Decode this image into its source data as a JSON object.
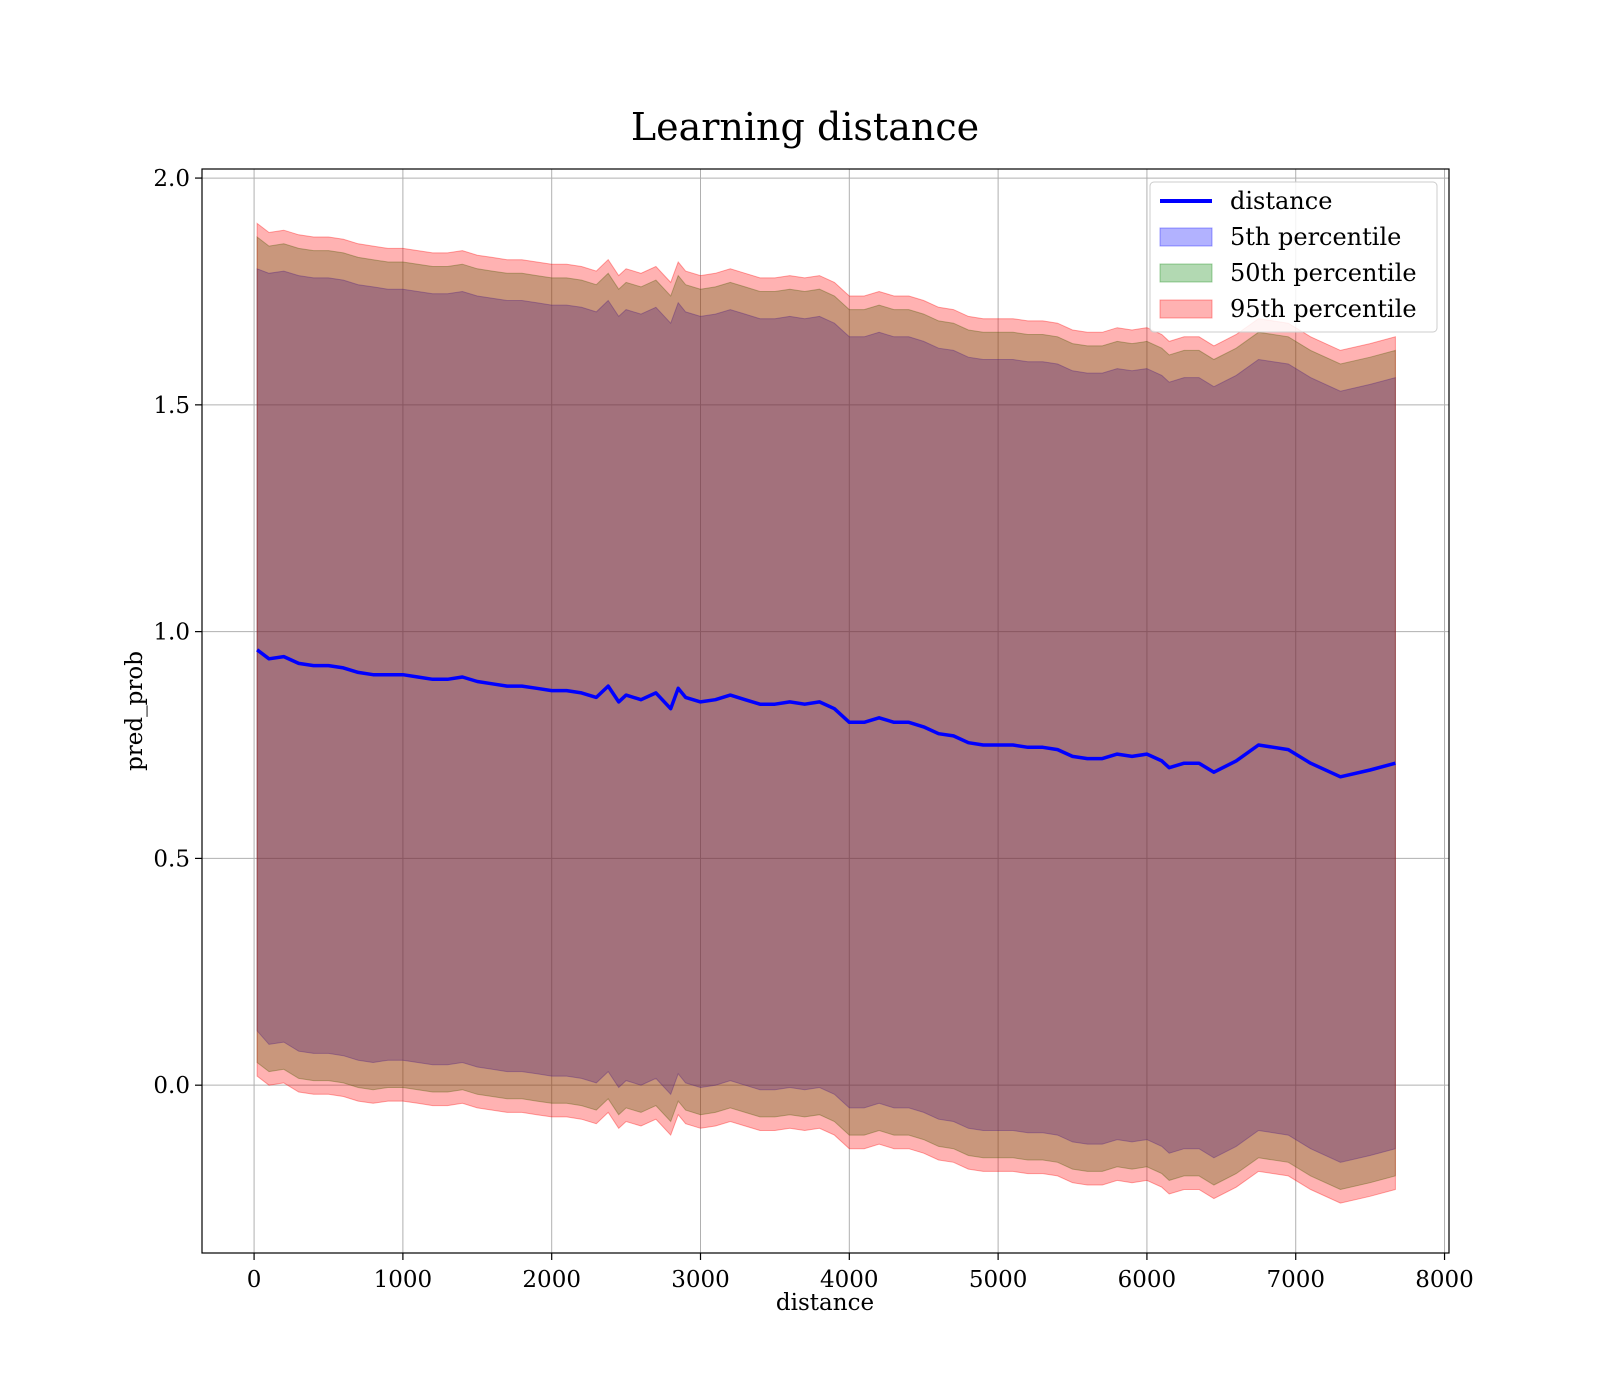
{
  "chart_data": {
    "type": "line",
    "title": "Learning distance",
    "xlabel": "distance",
    "ylabel": "pred_prob",
    "xlim": [
      -350,
      8030
    ],
    "ylim": [
      -0.37,
      2.02
    ],
    "xticks": [
      0,
      1000,
      2000,
      3000,
      4000,
      5000,
      6000,
      7000,
      8000
    ],
    "yticks": [
      0.0,
      0.5,
      1.0,
      1.5,
      2.0
    ],
    "xtick_labels": [
      "0",
      "1000",
      "2000",
      "3000",
      "4000",
      "5000",
      "6000",
      "7000",
      "8000"
    ],
    "ytick_labels": [
      "0.0",
      "0.5",
      "1.0",
      "1.5",
      "2.0"
    ],
    "grid": true,
    "legend_position": "top-right",
    "colors": {
      "line": "#0000ff",
      "band_5": "#0000ff",
      "band_50": "#008000",
      "band_95": "#ff0000"
    },
    "line_series": {
      "name": "distance",
      "x": [
        20,
        100,
        200,
        300,
        400,
        500,
        600,
        700,
        800,
        900,
        1000,
        1100,
        1200,
        1300,
        1400,
        1500,
        1600,
        1700,
        1800,
        1900,
        2000,
        2100,
        2200,
        2300,
        2380,
        2450,
        2500,
        2600,
        2700,
        2800,
        2850,
        2900,
        3000,
        3100,
        3200,
        3300,
        3400,
        3500,
        3600,
        3700,
        3800,
        3900,
        4000,
        4100,
        4200,
        4300,
        4400,
        4500,
        4600,
        4700,
        4800,
        4900,
        5000,
        5100,
        5200,
        5300,
        5400,
        5500,
        5600,
        5700,
        5800,
        5900,
        6000,
        6100,
        6150,
        6250,
        6350,
        6450,
        6600,
        6750,
        6950,
        7100,
        7300,
        7500,
        7670
      ],
      "y": [
        0.96,
        0.94,
        0.945,
        0.93,
        0.925,
        0.925,
        0.92,
        0.91,
        0.905,
        0.905,
        0.905,
        0.9,
        0.895,
        0.895,
        0.9,
        0.89,
        0.885,
        0.88,
        0.88,
        0.875,
        0.87,
        0.87,
        0.865,
        0.855,
        0.88,
        0.845,
        0.86,
        0.85,
        0.865,
        0.83,
        0.875,
        0.855,
        0.845,
        0.85,
        0.86,
        0.85,
        0.84,
        0.84,
        0.845,
        0.84,
        0.845,
        0.83,
        0.8,
        0.8,
        0.81,
        0.8,
        0.8,
        0.79,
        0.775,
        0.77,
        0.755,
        0.75,
        0.75,
        0.75,
        0.745,
        0.745,
        0.74,
        0.725,
        0.72,
        0.72,
        0.73,
        0.725,
        0.73,
        0.715,
        0.7,
        0.71,
        0.71,
        0.69,
        0.715,
        0.75,
        0.74,
        0.71,
        0.68,
        0.695,
        0.71
      ]
    },
    "band_x": [
      20,
      100,
      200,
      300,
      400,
      500,
      600,
      700,
      800,
      900,
      1000,
      1100,
      1200,
      1300,
      1400,
      1500,
      1600,
      1700,
      1800,
      1900,
      2000,
      2100,
      2200,
      2300,
      2380,
      2450,
      2500,
      2600,
      2700,
      2800,
      2850,
      2900,
      3000,
      3100,
      3200,
      3300,
      3400,
      3500,
      3600,
      3700,
      3800,
      3900,
      4000,
      4100,
      4200,
      4300,
      4400,
      4500,
      4600,
      4700,
      4800,
      4900,
      5000,
      5100,
      5200,
      5300,
      5400,
      5500,
      5600,
      5700,
      5800,
      5900,
      6000,
      6100,
      6150,
      6250,
      6350,
      6450,
      6600,
      6750,
      6950,
      7100,
      7300,
      7500,
      7670
    ],
    "series": [
      {
        "name": "5th percentile",
        "upper": [
          1.8,
          1.79,
          1.795,
          1.785,
          1.78,
          1.78,
          1.775,
          1.765,
          1.76,
          1.755,
          1.755,
          1.75,
          1.745,
          1.745,
          1.75,
          1.74,
          1.735,
          1.73,
          1.73,
          1.725,
          1.72,
          1.72,
          1.715,
          1.705,
          1.73,
          1.695,
          1.71,
          1.7,
          1.715,
          1.68,
          1.725,
          1.705,
          1.695,
          1.7,
          1.71,
          1.7,
          1.69,
          1.69,
          1.695,
          1.69,
          1.695,
          1.68,
          1.65,
          1.65,
          1.66,
          1.65,
          1.65,
          1.64,
          1.625,
          1.62,
          1.605,
          1.6,
          1.6,
          1.6,
          1.595,
          1.595,
          1.59,
          1.575,
          1.57,
          1.57,
          1.58,
          1.575,
          1.58,
          1.565,
          1.55,
          1.56,
          1.56,
          1.54,
          1.565,
          1.6,
          1.59,
          1.56,
          1.53,
          1.545,
          1.56
        ],
        "lower": [
          0.12,
          0.09,
          0.095,
          0.075,
          0.07,
          0.07,
          0.065,
          0.055,
          0.05,
          0.055,
          0.055,
          0.05,
          0.045,
          0.045,
          0.05,
          0.04,
          0.035,
          0.03,
          0.03,
          0.025,
          0.02,
          0.02,
          0.015,
          0.005,
          0.03,
          -0.005,
          0.01,
          0.0,
          0.015,
          -0.02,
          0.025,
          0.005,
          -0.005,
          0.0,
          0.01,
          0.0,
          -0.01,
          -0.01,
          -0.005,
          -0.01,
          -0.005,
          -0.02,
          -0.05,
          -0.05,
          -0.04,
          -0.05,
          -0.05,
          -0.06,
          -0.075,
          -0.08,
          -0.095,
          -0.1,
          -0.1,
          -0.1,
          -0.105,
          -0.105,
          -0.11,
          -0.125,
          -0.13,
          -0.13,
          -0.12,
          -0.125,
          -0.12,
          -0.135,
          -0.15,
          -0.14,
          -0.14,
          -0.16,
          -0.135,
          -0.1,
          -0.11,
          -0.14,
          -0.17,
          -0.155,
          -0.14
        ]
      },
      {
        "name": "50th percentile",
        "upper": [
          1.87,
          1.85,
          1.855,
          1.845,
          1.84,
          1.84,
          1.835,
          1.825,
          1.82,
          1.815,
          1.815,
          1.81,
          1.805,
          1.805,
          1.81,
          1.8,
          1.795,
          1.79,
          1.79,
          1.785,
          1.78,
          1.78,
          1.775,
          1.765,
          1.79,
          1.755,
          1.77,
          1.76,
          1.775,
          1.74,
          1.785,
          1.765,
          1.755,
          1.76,
          1.77,
          1.76,
          1.75,
          1.75,
          1.755,
          1.75,
          1.755,
          1.74,
          1.71,
          1.71,
          1.72,
          1.71,
          1.71,
          1.7,
          1.685,
          1.68,
          1.665,
          1.66,
          1.66,
          1.66,
          1.655,
          1.655,
          1.65,
          1.635,
          1.63,
          1.63,
          1.64,
          1.635,
          1.64,
          1.625,
          1.61,
          1.62,
          1.62,
          1.6,
          1.625,
          1.66,
          1.65,
          1.62,
          1.59,
          1.605,
          1.62
        ],
        "lower": [
          0.05,
          0.03,
          0.035,
          0.015,
          0.01,
          0.01,
          0.005,
          -0.005,
          -0.01,
          -0.005,
          -0.005,
          -0.01,
          -0.015,
          -0.015,
          -0.01,
          -0.02,
          -0.025,
          -0.03,
          -0.03,
          -0.035,
          -0.04,
          -0.04,
          -0.045,
          -0.055,
          -0.03,
          -0.065,
          -0.05,
          -0.06,
          -0.045,
          -0.08,
          -0.035,
          -0.055,
          -0.065,
          -0.06,
          -0.05,
          -0.06,
          -0.07,
          -0.07,
          -0.065,
          -0.07,
          -0.065,
          -0.08,
          -0.11,
          -0.11,
          -0.1,
          -0.11,
          -0.11,
          -0.12,
          -0.135,
          -0.14,
          -0.155,
          -0.16,
          -0.16,
          -0.16,
          -0.165,
          -0.165,
          -0.17,
          -0.185,
          -0.19,
          -0.19,
          -0.18,
          -0.185,
          -0.18,
          -0.195,
          -0.21,
          -0.2,
          -0.2,
          -0.22,
          -0.195,
          -0.16,
          -0.17,
          -0.2,
          -0.23,
          -0.215,
          -0.2
        ]
      },
      {
        "name": "95th percentile",
        "upper": [
          1.9,
          1.88,
          1.885,
          1.875,
          1.87,
          1.87,
          1.865,
          1.855,
          1.85,
          1.845,
          1.845,
          1.84,
          1.835,
          1.835,
          1.84,
          1.83,
          1.825,
          1.82,
          1.82,
          1.815,
          1.81,
          1.81,
          1.805,
          1.795,
          1.82,
          1.785,
          1.8,
          1.79,
          1.805,
          1.77,
          1.815,
          1.795,
          1.785,
          1.79,
          1.8,
          1.79,
          1.78,
          1.78,
          1.785,
          1.78,
          1.785,
          1.77,
          1.74,
          1.74,
          1.75,
          1.74,
          1.74,
          1.73,
          1.715,
          1.71,
          1.695,
          1.69,
          1.69,
          1.69,
          1.685,
          1.685,
          1.68,
          1.665,
          1.66,
          1.66,
          1.67,
          1.665,
          1.67,
          1.655,
          1.64,
          1.65,
          1.65,
          1.63,
          1.655,
          1.69,
          1.68,
          1.65,
          1.62,
          1.635,
          1.65
        ],
        "lower": [
          0.02,
          0.0,
          0.005,
          -0.015,
          -0.02,
          -0.02,
          -0.025,
          -0.035,
          -0.04,
          -0.035,
          -0.035,
          -0.04,
          -0.045,
          -0.045,
          -0.04,
          -0.05,
          -0.055,
          -0.06,
          -0.06,
          -0.065,
          -0.07,
          -0.07,
          -0.075,
          -0.085,
          -0.06,
          -0.095,
          -0.08,
          -0.09,
          -0.075,
          -0.11,
          -0.065,
          -0.085,
          -0.095,
          -0.09,
          -0.08,
          -0.09,
          -0.1,
          -0.1,
          -0.095,
          -0.1,
          -0.095,
          -0.11,
          -0.14,
          -0.14,
          -0.13,
          -0.14,
          -0.14,
          -0.15,
          -0.165,
          -0.17,
          -0.185,
          -0.19,
          -0.19,
          -0.19,
          -0.195,
          -0.195,
          -0.2,
          -0.215,
          -0.22,
          -0.22,
          -0.21,
          -0.215,
          -0.21,
          -0.225,
          -0.24,
          -0.23,
          -0.23,
          -0.25,
          -0.225,
          -0.19,
          -0.2,
          -0.23,
          -0.26,
          -0.245,
          -0.23
        ]
      }
    ],
    "legend": [
      "distance",
      "5th percentile",
      "50th percentile",
      "95th percentile"
    ]
  }
}
